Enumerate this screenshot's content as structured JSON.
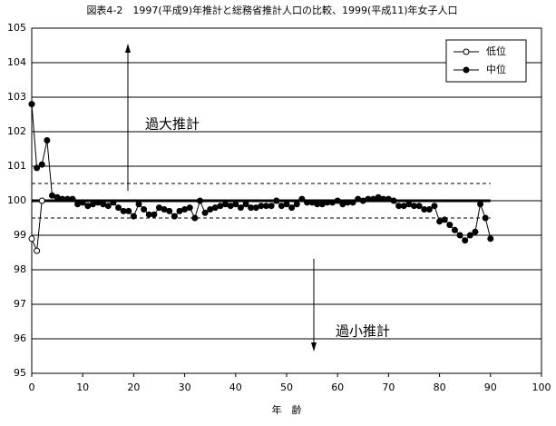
{
  "chart_data": {
    "type": "line",
    "title": "図表4-2　1997(平成9)年推計と総務省推計人口の比較、1999(平成11)年女子人口",
    "x_label": "年　齢",
    "annotations": [
      "過大推計",
      "過小推計"
    ],
    "x": [
      0,
      1,
      2,
      3,
      4,
      5,
      6,
      7,
      8,
      9,
      10,
      11,
      12,
      13,
      14,
      15,
      16,
      17,
      18,
      19,
      20,
      21,
      22,
      23,
      24,
      25,
      26,
      27,
      28,
      29,
      30,
      31,
      32,
      33,
      34,
      35,
      36,
      37,
      38,
      39,
      40,
      41,
      42,
      43,
      44,
      45,
      46,
      47,
      48,
      49,
      50,
      51,
      52,
      53,
      54,
      55,
      56,
      57,
      58,
      59,
      60,
      61,
      62,
      63,
      64,
      65,
      66,
      67,
      68,
      69,
      70,
      71,
      72,
      73,
      74,
      75,
      76,
      77,
      78,
      79,
      80,
      81,
      82,
      83,
      84,
      85,
      86,
      87,
      88,
      89,
      90
    ],
    "series": [
      {
        "name": "低位",
        "color": "#000000",
        "marker": "open",
        "values": [
          98.9,
          98.55,
          100.0,
          null,
          null,
          null,
          null,
          null,
          null,
          null,
          null,
          null,
          null,
          null,
          null,
          null,
          null,
          null,
          null,
          null,
          null,
          null,
          null,
          null,
          null,
          null,
          null,
          null,
          null,
          null,
          null,
          null,
          null,
          null,
          null,
          null,
          null,
          null,
          null,
          null,
          null,
          null,
          null,
          null,
          null,
          null,
          null,
          null,
          null,
          null,
          null,
          null,
          null,
          null,
          null,
          null,
          null,
          null,
          null,
          null,
          null,
          null,
          null,
          null,
          null,
          null,
          null,
          null,
          null,
          null,
          null,
          null,
          null,
          null,
          null,
          null,
          null,
          null,
          null,
          null,
          null,
          null,
          null,
          null,
          null,
          null,
          null,
          null,
          null,
          null,
          null
        ]
      },
      {
        "name": "中位",
        "color": "#000000",
        "marker": "filled",
        "values": [
          102.8,
          100.95,
          101.05,
          101.75,
          100.15,
          100.1,
          100.05,
          100.05,
          100.05,
          99.9,
          99.95,
          99.85,
          99.9,
          99.95,
          99.9,
          99.85,
          99.95,
          99.8,
          99.7,
          99.7,
          99.55,
          99.9,
          99.75,
          99.6,
          99.6,
          99.8,
          99.75,
          99.7,
          99.55,
          99.7,
          99.75,
          99.8,
          99.5,
          100.0,
          99.65,
          99.75,
          99.8,
          99.85,
          99.9,
          99.85,
          99.9,
          99.8,
          99.9,
          99.8,
          99.8,
          99.85,
          99.85,
          99.85,
          100.0,
          99.85,
          99.9,
          99.8,
          99.9,
          100.05,
          99.95,
          99.95,
          99.9,
          99.9,
          99.95,
          99.95,
          100.0,
          99.9,
          99.95,
          99.95,
          100.05,
          100.0,
          100.05,
          100.05,
          100.1,
          100.05,
          100.05,
          100.0,
          99.85,
          99.85,
          99.9,
          99.85,
          99.85,
          99.75,
          99.75,
          99.85,
          99.4,
          99.45,
          99.3,
          99.15,
          99.0,
          98.85,
          99.0,
          99.1,
          99.9,
          99.5,
          98.9
        ]
      }
    ],
    "reference_lines": [
      {
        "value": 100,
        "style": "solid",
        "xlim": [
          0,
          90
        ]
      },
      {
        "value": 100.5,
        "style": "dashed",
        "xlim": [
          0,
          90
        ]
      },
      {
        "value": 99.5,
        "style": "dashed",
        "xlim": [
          0,
          90
        ]
      }
    ],
    "xlim": [
      0,
      100
    ],
    "xticks": [
      0,
      10,
      20,
      30,
      40,
      50,
      60,
      70,
      80,
      90,
      100
    ],
    "ylim": [
      95,
      105
    ],
    "yticks": [
      95,
      96,
      97,
      98,
      99,
      100,
      101,
      102,
      103,
      104,
      105
    ],
    "grid": true,
    "legend": "upper right"
  }
}
